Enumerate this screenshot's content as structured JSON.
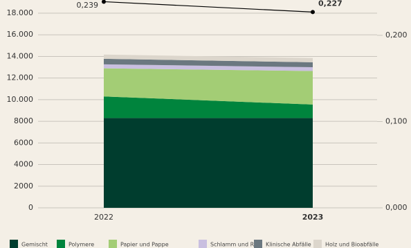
{
  "chart_data": {
    "type": "area",
    "stacked": true,
    "categories": [
      "2022",
      "2023"
    ],
    "series": [
      {
        "name": "Gemischt",
        "color": "#003d2e",
        "values": [
          8300,
          8300
        ]
      },
      {
        "name": "Polymere",
        "color": "#00843d",
        "values": [
          2000,
          1250
        ]
      },
      {
        "name": "Papier und Pappe",
        "color": "#a3cd75",
        "values": [
          2600,
          3100
        ]
      },
      {
        "name": "Schlamm und Ruß",
        "color": "#c9bfe0",
        "values": [
          370,
          350
        ]
      },
      {
        "name": "Klinische Abfälle",
        "color": "#6b7880",
        "values": [
          510,
          460
        ]
      },
      {
        "name": "Holz und Bioabfälle",
        "color": "#dcd6cc",
        "values": [
          390,
          390
        ]
      }
    ],
    "line": {
      "axis": "y2",
      "color": "#000000",
      "values": [
        0.239,
        0.227
      ],
      "value_labels": [
        "0,239",
        "0,227"
      ]
    },
    "ylim": [
      0,
      18000
    ],
    "yticks": [
      0,
      2000,
      4000,
      6000,
      8000,
      {
        "value": 10000,
        "label": "10.000"
      },
      {
        "value": 12000,
        "label": "12.000"
      },
      {
        "value": 14000,
        "label": "14.000"
      },
      {
        "value": 16000,
        "label": "16.000"
      },
      {
        "value": 18000,
        "label": "18.000"
      }
    ],
    "y2lim": [
      0,
      0.2257
    ],
    "y2ticks": [
      {
        "value": 0,
        "label": "0,000"
      },
      {
        "value": 0.1,
        "label": "0,100"
      },
      {
        "value": 0.2,
        "label": "0,200"
      }
    ],
    "grid": true,
    "legend": "bottom"
  }
}
